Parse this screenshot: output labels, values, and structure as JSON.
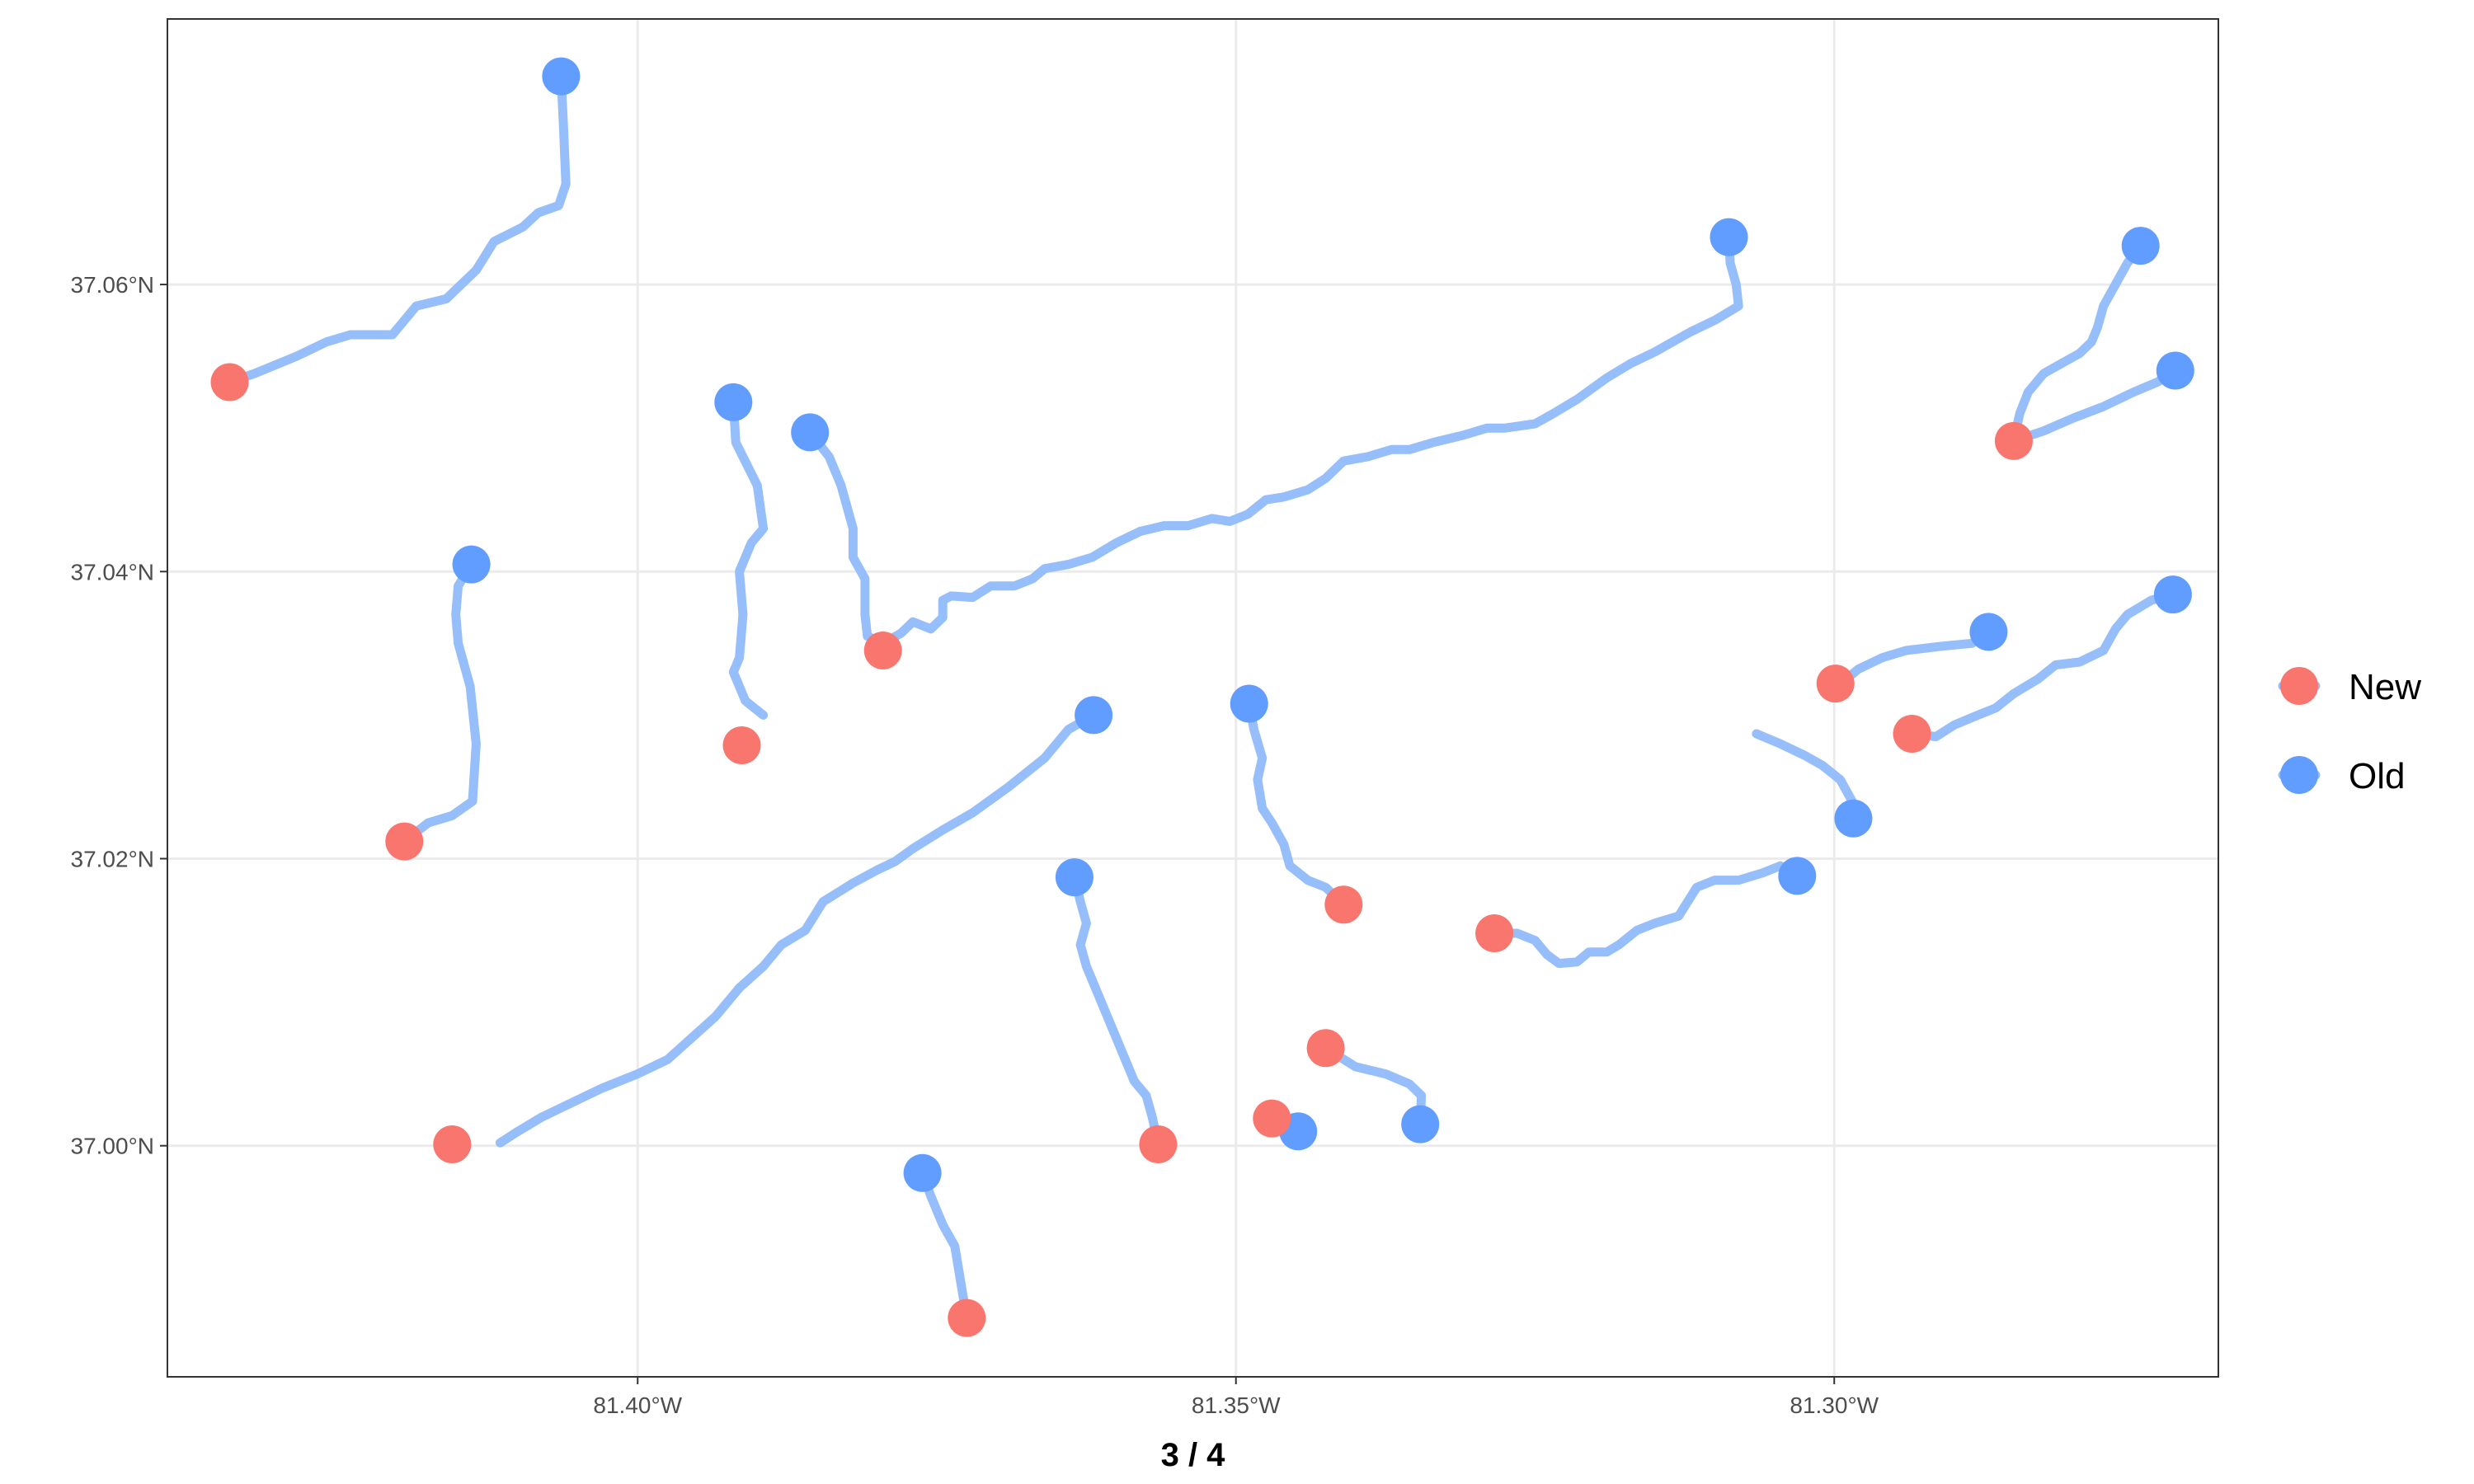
{
  "chart_data": {
    "type": "map-lines",
    "title": "",
    "xlabel": "3 / 4",
    "ylabel": "",
    "xlim": [
      -81.4393,
      -81.2679
    ],
    "ylim": [
      36.9839,
      37.0785
    ],
    "x_ticks": [
      -81.4,
      -81.35,
      -81.3
    ],
    "x_tick_labels": [
      "81.40°W",
      "81.35°W",
      "81.30°W"
    ],
    "y_ticks": [
      37.0,
      37.02,
      37.04,
      37.06
    ],
    "y_tick_labels": [
      "37.00°N",
      "37.02°N",
      "37.04°N",
      "37.06°N"
    ],
    "grid": true,
    "legend_position": "right",
    "legend": [
      {
        "key": "New",
        "label": "New",
        "color": "#F8766D"
      },
      {
        "key": "Old",
        "label": "Old",
        "color": "#619CFF"
      }
    ],
    "line_color": "#96BEFA",
    "paths": [
      {
        "points": [
          [
            -81.4064,
            37.0745
          ],
          [
            -81.4062,
            37.071
          ],
          [
            -81.406,
            37.067
          ],
          [
            -81.4066,
            37.0655
          ],
          [
            -81.4083,
            37.065
          ],
          [
            -81.4096,
            37.064
          ],
          [
            -81.412,
            37.063
          ],
          [
            -81.4135,
            37.061
          ],
          [
            -81.416,
            37.059
          ],
          [
            -81.4185,
            37.0585
          ],
          [
            -81.4205,
            37.0565
          ],
          [
            -81.424,
            37.0565
          ],
          [
            -81.426,
            37.056
          ],
          [
            -81.4285,
            37.055
          ],
          [
            -81.432,
            37.0538
          ],
          [
            -81.4341,
            37.0532
          ]
        ]
      },
      {
        "points": [
          [
            -81.4139,
            37.0405
          ],
          [
            -81.415,
            37.039
          ],
          [
            -81.4152,
            37.037
          ],
          [
            -81.415,
            37.035
          ],
          [
            -81.414,
            37.032
          ],
          [
            -81.4135,
            37.028
          ],
          [
            -81.4138,
            37.024
          ],
          [
            -81.4155,
            37.023
          ],
          [
            -81.4175,
            37.0225
          ],
          [
            -81.4195,
            37.0212
          ]
        ]
      },
      {
        "points": [
          [
            -81.392,
            37.0518
          ],
          [
            -81.3918,
            37.049
          ],
          [
            -81.39,
            37.046
          ],
          [
            -81.3895,
            37.043
          ],
          [
            -81.3905,
            37.042
          ],
          [
            -81.3915,
            37.04
          ],
          [
            -81.3912,
            37.037
          ],
          [
            -81.3915,
            37.034
          ],
          [
            -81.392,
            37.033
          ],
          [
            -81.391,
            37.031
          ],
          [
            -81.3895,
            37.03
          ]
        ]
      },
      {
        "points": [
          [
            -81.3856,
            37.0497
          ],
          [
            -81.384,
            37.048
          ],
          [
            -81.383,
            37.046
          ],
          [
            -81.382,
            37.043
          ],
          [
            -81.382,
            37.041
          ],
          [
            -81.381,
            37.0395
          ],
          [
            -81.381,
            37.037
          ],
          [
            -81.3808,
            37.0355
          ],
          [
            -81.3795,
            37.035
          ],
          [
            -81.378,
            37.0357
          ],
          [
            -81.377,
            37.0365
          ],
          [
            -81.3755,
            37.036
          ],
          [
            -81.3745,
            37.0368
          ],
          [
            -81.3745,
            37.038
          ],
          [
            -81.3738,
            37.0383
          ],
          [
            -81.372,
            37.0382
          ],
          [
            -81.3705,
            37.039
          ],
          [
            -81.3685,
            37.039
          ],
          [
            -81.367,
            37.0395
          ],
          [
            -81.366,
            37.0402
          ],
          [
            -81.364,
            37.0405
          ],
          [
            -81.362,
            37.041
          ],
          [
            -81.36,
            37.042
          ],
          [
            -81.358,
            37.0428
          ],
          [
            -81.356,
            37.0432
          ],
          [
            -81.354,
            37.0432
          ],
          [
            -81.352,
            37.0437
          ],
          [
            -81.3505,
            37.0435
          ],
          [
            -81.349,
            37.044
          ],
          [
            -81.3475,
            37.045
          ],
          [
            -81.346,
            37.0452
          ],
          [
            -81.344,
            37.0457
          ],
          [
            -81.3425,
            37.0465
          ],
          [
            -81.341,
            37.0477
          ],
          [
            -81.339,
            37.048
          ],
          [
            -81.337,
            37.0485
          ],
          [
            -81.3355,
            37.0485
          ],
          [
            -81.3335,
            37.049
          ],
          [
            -81.331,
            37.0495
          ],
          [
            -81.329,
            37.05
          ],
          [
            -81.3275,
            37.05
          ],
          [
            -81.325,
            37.0503
          ],
          [
            -81.3235,
            37.051
          ],
          [
            -81.3215,
            37.052
          ],
          [
            -81.319,
            37.0535
          ],
          [
            -81.317,
            37.0545
          ],
          [
            -81.315,
            37.0553
          ],
          [
            -81.3135,
            37.056
          ],
          [
            -81.312,
            37.0567
          ],
          [
            -81.31,
            37.0575
          ],
          [
            -81.308,
            37.0585
          ],
          [
            -81.3082,
            37.06
          ],
          [
            -81.3087,
            37.0615
          ],
          [
            -81.3088,
            37.0633
          ]
        ]
      },
      {
        "points": [
          [
            -81.3619,
            37.03
          ],
          [
            -81.364,
            37.029
          ],
          [
            -81.366,
            37.027
          ],
          [
            -81.369,
            37.025
          ],
          [
            -81.372,
            37.0232
          ],
          [
            -81.3745,
            37.022
          ],
          [
            -81.377,
            37.0207
          ],
          [
            -81.3785,
            37.0198
          ],
          [
            -81.38,
            37.0192
          ],
          [
            -81.382,
            37.0183
          ],
          [
            -81.3845,
            37.017
          ],
          [
            -81.386,
            37.015
          ],
          [
            -81.388,
            37.014
          ],
          [
            -81.3895,
            37.0125
          ],
          [
            -81.3915,
            37.011
          ],
          [
            -81.3935,
            37.009
          ],
          [
            -81.3955,
            37.0075
          ],
          [
            -81.3975,
            37.006
          ],
          [
            -81.4,
            37.005
          ],
          [
            -81.403,
            37.004
          ],
          [
            -81.406,
            37.0028
          ],
          [
            -81.408,
            37.002
          ],
          [
            -81.41,
            37.001
          ],
          [
            -81.4115,
            37.0002
          ]
        ]
      },
      {
        "points": [
          [
            -81.3489,
            37.0308
          ],
          [
            -81.3485,
            37.029
          ],
          [
            -81.3478,
            37.027
          ],
          [
            -81.3482,
            37.0255
          ],
          [
            -81.3478,
            37.0235
          ],
          [
            -81.347,
            37.0225
          ],
          [
            -81.346,
            37.021
          ],
          [
            -81.3455,
            37.0195
          ],
          [
            -81.344,
            37.0185
          ],
          [
            -81.3425,
            37.018
          ],
          [
            -81.341,
            37.0168
          ]
        ]
      },
      {
        "points": [
          [
            -81.3635,
            37.0187
          ],
          [
            -81.363,
            37.017
          ],
          [
            -81.3625,
            37.0155
          ],
          [
            -81.363,
            37.014
          ],
          [
            -81.3625,
            37.0125
          ],
          [
            -81.3615,
            37.0105
          ],
          [
            -81.3605,
            37.0085
          ],
          [
            -81.3595,
            37.0065
          ],
          [
            -81.3585,
            37.0045
          ],
          [
            -81.3575,
            37.0035
          ],
          [
            -81.357,
            37.002
          ],
          [
            -81.3565,
            37.0001
          ]
        ]
      },
      {
        "points": [
          [
            -81.3762,
            36.9981
          ],
          [
            -81.3755,
            36.9965
          ],
          [
            -81.3745,
            36.9945
          ],
          [
            -81.3735,
            36.993
          ],
          [
            -81.373,
            36.9905
          ],
          [
            -81.3725,
            36.988
          ]
        ]
      },
      {
        "points": [
          [
            -81.3448,
            37.001
          ],
          [
            -81.346,
            37.0015
          ],
          [
            -81.3475,
            37.002
          ]
        ]
      },
      {
        "points": [
          [
            -81.3346,
            37.0015
          ],
          [
            -81.3345,
            37.0035
          ],
          [
            -81.3355,
            37.0043
          ],
          [
            -81.3375,
            37.005
          ],
          [
            -81.34,
            37.0055
          ],
          [
            -81.3425,
            37.0068
          ]
        ]
      },
      {
        "points": [
          [
            -81.3031,
            37.0188
          ],
          [
            -81.3045,
            37.0195
          ],
          [
            -81.306,
            37.019
          ],
          [
            -81.308,
            37.0185
          ],
          [
            -81.31,
            37.0185
          ],
          [
            -81.3115,
            37.018
          ],
          [
            -81.313,
            37.016
          ],
          [
            -81.315,
            37.0155
          ],
          [
            -81.3165,
            37.015
          ],
          [
            -81.318,
            37.014
          ],
          [
            -81.319,
            37.0135
          ],
          [
            -81.3205,
            37.0135
          ],
          [
            -81.3215,
            37.0128
          ],
          [
            -81.323,
            37.0127
          ],
          [
            -81.324,
            37.0133
          ],
          [
            -81.325,
            37.0143
          ],
          [
            -81.3265,
            37.0148
          ],
          [
            -81.3277,
            37.0148
          ]
        ]
      },
      {
        "points": [
          [
            -81.2871,
            37.0358
          ],
          [
            -81.2885,
            37.035
          ],
          [
            -81.291,
            37.0348
          ],
          [
            -81.294,
            37.0345
          ],
          [
            -81.296,
            37.034
          ],
          [
            -81.298,
            37.0332
          ],
          [
            -81.299,
            37.0325
          ]
        ]
      },
      {
        "points": [
          [
            -81.2717,
            37.0384
          ],
          [
            -81.2735,
            37.038
          ],
          [
            -81.2755,
            37.037
          ],
          [
            -81.2765,
            37.036
          ],
          [
            -81.2775,
            37.0345
          ],
          [
            -81.2795,
            37.0337
          ],
          [
            -81.2815,
            37.0335
          ],
          [
            -81.283,
            37.0325
          ],
          [
            -81.285,
            37.0315
          ],
          [
            -81.2865,
            37.0305
          ],
          [
            -81.288,
            37.03
          ],
          [
            -81.29,
            37.0293
          ],
          [
            -81.2915,
            37.0285
          ],
          [
            -81.2935,
            37.0287
          ]
        ]
      },
      {
        "points": [
          [
            -81.2984,
            37.0228
          ],
          [
            -81.2985,
            37.024
          ],
          [
            -81.2995,
            37.0255
          ],
          [
            -81.301,
            37.0265
          ],
          [
            -81.3025,
            37.0272
          ],
          [
            -81.3045,
            37.028
          ],
          [
            -81.3065,
            37.0287
          ]
        ]
      },
      {
        "points": [
          [
            -81.2744,
            37.0627
          ],
          [
            -81.2755,
            37.0615
          ],
          [
            -81.2765,
            37.06
          ],
          [
            -81.2775,
            37.0585
          ],
          [
            -81.278,
            37.057
          ],
          [
            -81.2785,
            37.056
          ],
          [
            -81.2795,
            37.0552
          ],
          [
            -81.281,
            37.0545
          ],
          [
            -81.2825,
            37.0538
          ],
          [
            -81.2838,
            37.0525
          ],
          [
            -81.2845,
            37.051
          ],
          [
            -81.285,
            37.0491
          ]
        ]
      },
      {
        "points": [
          [
            -81.2715,
            37.054
          ],
          [
            -81.273,
            37.0532
          ],
          [
            -81.275,
            37.0525
          ],
          [
            -81.2775,
            37.0515
          ],
          [
            -81.28,
            37.0507
          ],
          [
            -81.2825,
            37.0498
          ],
          [
            -81.285,
            37.0491
          ]
        ]
      }
    ],
    "points": [
      {
        "group": "Old",
        "x": -81.4064,
        "y": 37.0745
      },
      {
        "group": "New",
        "x": -81.4341,
        "y": 37.0532
      },
      {
        "group": "Old",
        "x": -81.4139,
        "y": 37.0405
      },
      {
        "group": "New",
        "x": -81.4195,
        "y": 37.0212
      },
      {
        "group": "Old",
        "x": -81.392,
        "y": 37.0518
      },
      {
        "group": "New",
        "x": -81.3913,
        "y": 37.0279
      },
      {
        "group": "Old",
        "x": -81.3856,
        "y": 37.0497
      },
      {
        "group": "New",
        "x": -81.3795,
        "y": 37.0345
      },
      {
        "group": "Old",
        "x": -81.3088,
        "y": 37.0633
      },
      {
        "group": "Old",
        "x": -81.3619,
        "y": 37.03
      },
      {
        "group": "New",
        "x": -81.4155,
        "y": 37.0001
      },
      {
        "group": "Old",
        "x": -81.3489,
        "y": 37.0308
      },
      {
        "group": "New",
        "x": -81.341,
        "y": 37.0168
      },
      {
        "group": "Old",
        "x": -81.3635,
        "y": 37.0187
      },
      {
        "group": "New",
        "x": -81.3565,
        "y": 37.0001
      },
      {
        "group": "Old",
        "x": -81.3762,
        "y": 36.9981
      },
      {
        "group": "New",
        "x": -81.3725,
        "y": 36.988
      },
      {
        "group": "Old",
        "x": -81.3448,
        "y": 37.001
      },
      {
        "group": "New",
        "x": -81.347,
        "y": 37.0019
      },
      {
        "group": "Old",
        "x": -81.3346,
        "y": 37.0015
      },
      {
        "group": "New",
        "x": -81.3425,
        "y": 37.0068
      },
      {
        "group": "Old",
        "x": -81.3031,
        "y": 37.0188
      },
      {
        "group": "New",
        "x": -81.3284,
        "y": 37.0148
      },
      {
        "group": "Old",
        "x": -81.2871,
        "y": 37.0358
      },
      {
        "group": "New",
        "x": -81.2999,
        "y": 37.0322
      },
      {
        "group": "Old",
        "x": -81.2717,
        "y": 37.0384
      },
      {
        "group": "New",
        "x": -81.2935,
        "y": 37.0287
      },
      {
        "group": "Old",
        "x": -81.2984,
        "y": 37.0228
      },
      {
        "group": "Old",
        "x": -81.2744,
        "y": 37.0627
      },
      {
        "group": "Old",
        "x": -81.2715,
        "y": 37.054
      },
      {
        "group": "New",
        "x": -81.285,
        "y": 37.0491
      }
    ]
  }
}
